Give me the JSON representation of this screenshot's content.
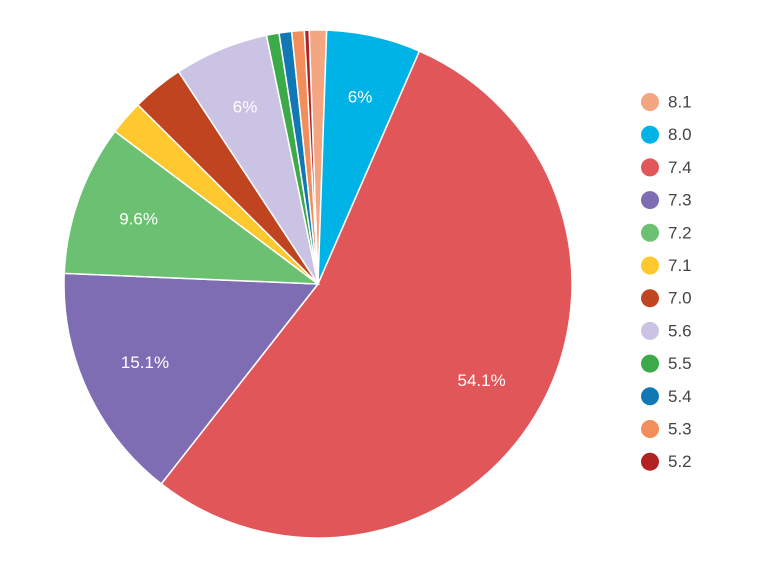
{
  "chart_data": {
    "type": "pie",
    "categories": [
      "8.1",
      "8.0",
      "7.4",
      "7.3",
      "7.2",
      "7.1",
      "7.0",
      "5.6",
      "5.5",
      "5.4",
      "5.3",
      "5.2"
    ],
    "values": [
      1.1,
      6.0,
      54.1,
      15.1,
      9.6,
      2.2,
      3.3,
      6.0,
      0.8,
      0.8,
      0.8,
      0.3
    ],
    "colors": [
      "#f4a582",
      "#00b3e6",
      "#e15759",
      "#7f6db4",
      "#6cc072",
      "#ffc82f",
      "#c0441f",
      "#cbc3e3",
      "#3daa4a",
      "#1177b5",
      "#f28e5b",
      "#b22222"
    ],
    "data_labels": [
      "",
      "6%",
      "54.1%",
      "15.1%",
      "9.6%",
      "",
      "",
      "6%",
      "",
      "",
      "",
      ""
    ],
    "legend": {
      "position": "right"
    },
    "title": "",
    "start_angle": "slight offset counter-clockwise from 12 o'clock, clockwise order"
  }
}
